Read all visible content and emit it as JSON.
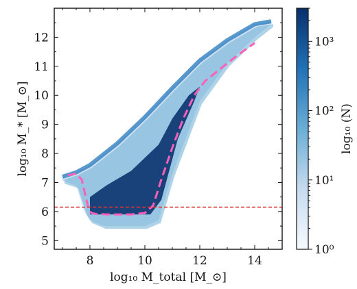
{
  "chart_data": [
    {
      "type": "heatmap",
      "subtype": "hexbin",
      "xlabel": "log₁₀ M_total [M_⊙]",
      "ylabel": "log₁₀ M_* [M_⊙]",
      "xlim": [
        6.7,
        15.0
      ],
      "ylim": [
        4.7,
        13.0
      ],
      "xticks": [
        8,
        10,
        12,
        14
      ],
      "yticks": [
        5,
        6,
        7,
        8,
        9,
        10,
        11,
        12
      ],
      "grid": false,
      "colormap": "Blues (log scale)",
      "colorbar": {
        "label": "log₁₀ (N)",
        "scale": "log",
        "range": [
          1,
          3000
        ],
        "ticks": [
          "10⁰",
          "10¹",
          "10²",
          "10³"
        ],
        "tick_values": [
          1,
          10,
          100,
          1000
        ]
      },
      "density_region": {
        "upper_envelope": [
          [
            7.0,
            7.2
          ],
          [
            7.5,
            7.35
          ],
          [
            8.0,
            7.6
          ],
          [
            9.0,
            8.35
          ],
          [
            10.0,
            9.25
          ],
          [
            11.0,
            10.25
          ],
          [
            12.0,
            11.2
          ],
          [
            13.0,
            11.9
          ],
          [
            14.0,
            12.45
          ],
          [
            14.6,
            12.55
          ]
        ],
        "lower_envelope": [
          [
            7.0,
            7.05
          ],
          [
            7.5,
            6.9
          ],
          [
            7.8,
            6.0
          ],
          [
            8.0,
            5.7
          ],
          [
            8.5,
            5.5
          ],
          [
            10.0,
            5.5
          ],
          [
            10.5,
            5.7
          ],
          [
            11.0,
            7.3
          ],
          [
            12.0,
            9.8
          ],
          [
            13.0,
            11.1
          ],
          [
            14.0,
            12.0
          ],
          [
            14.6,
            12.45
          ]
        ],
        "core": [
          [
            8.0,
            5.9
          ],
          [
            10.2,
            5.9
          ],
          [
            10.6,
            6.4
          ],
          [
            11.2,
            8.5
          ],
          [
            11.8,
            9.8
          ],
          [
            12.0,
            10.3
          ],
          [
            11.6,
            10.0
          ],
          [
            11.0,
            9.2
          ],
          [
            10.5,
            8.3
          ],
          [
            9.5,
            7.4
          ],
          [
            8.6,
            6.9
          ],
          [
            8.0,
            6.5
          ]
        ]
      },
      "series": [
        {
          "style": "dashed",
          "color": "#ff5fb8",
          "x": [
            7.2,
            7.5,
            7.7,
            7.85,
            7.95,
            8.05,
            8.2,
            8.6,
            9.0,
            9.5,
            10.0,
            10.3,
            10.6,
            11.0,
            11.4,
            11.8,
            12.2,
            12.6,
            13.0,
            13.4,
            13.7,
            14.0
          ],
          "y": [
            7.25,
            7.3,
            7.1,
            6.5,
            6.1,
            5.95,
            5.92,
            5.9,
            5.9,
            5.9,
            5.95,
            6.2,
            7.1,
            8.2,
            9.2,
            10.0,
            10.5,
            10.8,
            11.1,
            11.4,
            11.6,
            11.8
          ]
        },
        {
          "style": "dashed",
          "color": "#e03030",
          "y_constant": 6.15
        }
      ]
    }
  ]
}
